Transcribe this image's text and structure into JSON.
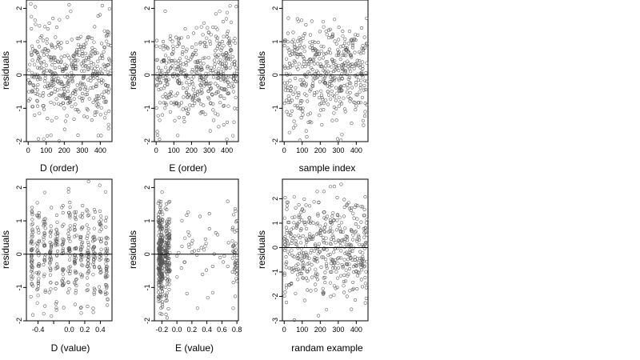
{
  "chart_data": [
    {
      "type": "scatter",
      "xlabel": "D (order)",
      "ylabel": "residuals",
      "xlim": [
        -10,
        465
      ],
      "ylim": [
        -2,
        2.25
      ],
      "x_ticks": [
        0,
        100,
        200,
        300,
        400
      ],
      "y_ticks": [
        -2,
        -1,
        0,
        1,
        2
      ],
      "reference_line_y": 0,
      "n_points": 460,
      "series": [
        {
          "x_range": [
            1,
            460
          ],
          "y_range": [
            -2,
            2.2
          ],
          "marker": "open-circle"
        }
      ]
    },
    {
      "type": "scatter",
      "xlabel": "E (order)",
      "ylabel": "residuals",
      "xlim": [
        -10,
        465
      ],
      "ylim": [
        -2,
        2.25
      ],
      "x_ticks": [
        0,
        100,
        200,
        300,
        400
      ],
      "y_ticks": [
        -2,
        -1,
        0,
        1,
        2
      ],
      "reference_line_y": 0,
      "n_points": 460,
      "series": [
        {
          "x_range": [
            1,
            460
          ],
          "y_range": [
            -2,
            2.2
          ],
          "marker": "open-circle"
        }
      ]
    },
    {
      "type": "scatter",
      "xlabel": "sample index",
      "ylabel": "residuals",
      "xlim": [
        -10,
        465
      ],
      "ylim": [
        -2,
        2.25
      ],
      "x_ticks": [
        0,
        100,
        200,
        300,
        400
      ],
      "y_ticks": [
        -2,
        -1,
        0,
        1,
        2
      ],
      "reference_line_y": 0,
      "n_points": 460,
      "series": [
        {
          "x_range": [
            1,
            460
          ],
          "y_range": [
            -2,
            2.2
          ],
          "marker": "open-circle"
        }
      ]
    },
    {
      "type": "scatter",
      "xlabel": "D (value)",
      "ylabel": "residuals",
      "xlim": [
        -0.55,
        0.55
      ],
      "ylim": [
        -2,
        2.25
      ],
      "x_ticks": [
        -0.4,
        -0.2,
        0,
        0.2,
        0.4
      ],
      "x_tick_labels": [
        "-0.4",
        "",
        "0.0",
        "0.2",
        "0.4"
      ],
      "y_ticks": [
        -2,
        -1,
        0,
        1,
        2
      ],
      "reference_line_y": 0,
      "n_points": 460,
      "series": [
        {
          "x_range": [
            -0.5,
            0.5
          ],
          "y_range": [
            -2,
            2.2
          ],
          "marker": "open-circle"
        }
      ]
    },
    {
      "type": "scatter",
      "xlabel": "E (value)",
      "ylabel": "residuals",
      "xlim": [
        -0.3,
        0.82
      ],
      "ylim": [
        -2,
        2.25
      ],
      "x_ticks": [
        -0.2,
        0,
        0.2,
        0.4,
        0.6,
        0.8
      ],
      "x_tick_labels": [
        "-0.2",
        "0.0",
        "0.2",
        "0.4",
        "0.6",
        "0.8"
      ],
      "y_ticks": [
        -2,
        -1,
        0,
        1,
        2
      ],
      "reference_line_y": 0,
      "n_points": 460,
      "series": [
        {
          "x_range": [
            -0.25,
            0.8
          ],
          "y_range": [
            -2,
            2.2
          ],
          "marker": "open-circle"
        }
      ]
    },
    {
      "type": "scatter",
      "xlabel": "randam example",
      "ylabel": "residuals",
      "xlim": [
        -10,
        465
      ],
      "ylim": [
        -3,
        2.8
      ],
      "x_ticks": [
        0,
        100,
        200,
        300,
        400
      ],
      "y_ticks": [
        -3,
        -2,
        -1,
        0,
        1,
        2
      ],
      "reference_line_y": 0,
      "n_points": 460,
      "series": [
        {
          "x_range": [
            1,
            460
          ],
          "y_range": [
            -3,
            2.7
          ],
          "marker": "open-circle"
        }
      ]
    }
  ]
}
